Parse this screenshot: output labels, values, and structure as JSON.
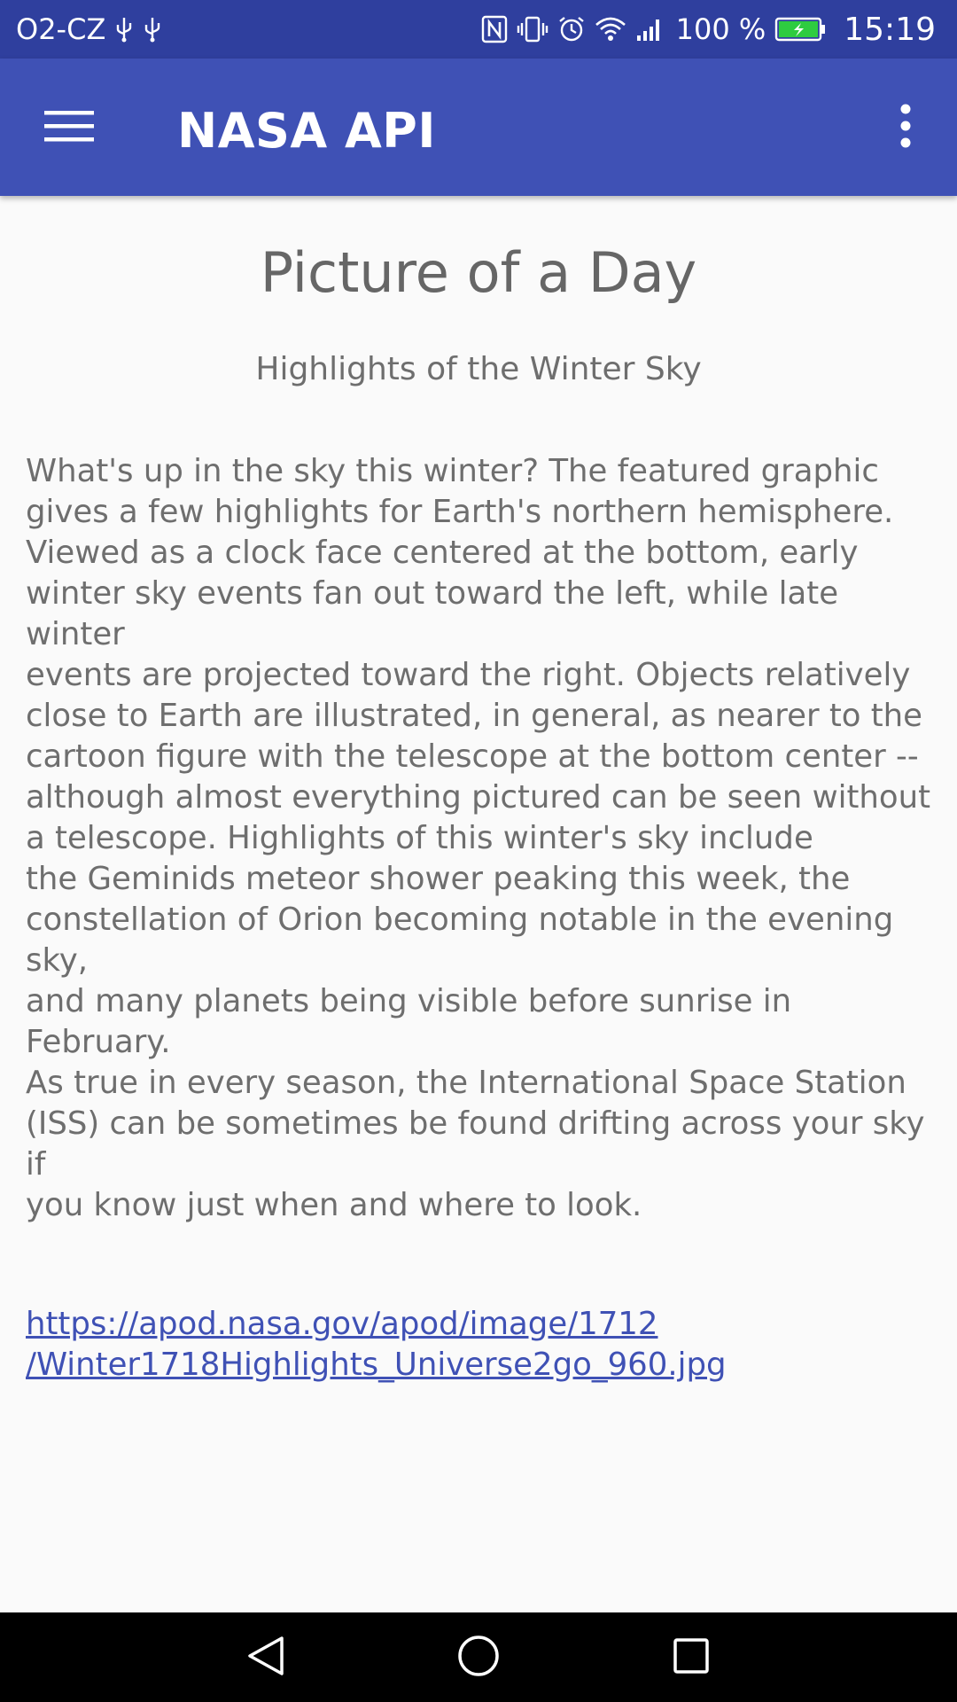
{
  "status_bar": {
    "carrier": "O2-CZ",
    "battery": "100 %",
    "time": "15:19",
    "icons": [
      "usb-icon",
      "usb-icon",
      "nfc-icon",
      "vibrate-icon",
      "alarm-icon",
      "wifi-icon",
      "signal-icon",
      "battery-charging-icon"
    ],
    "battery_color": "#2ecc40"
  },
  "app_bar": {
    "title": "NASA API",
    "color": "#3f51b5",
    "icons": [
      "menu-icon",
      "overflow-icon"
    ]
  },
  "content": {
    "heading": "Picture of a Day",
    "subtitle": "Highlights of the Winter Sky",
    "explanation": "What's up in the sky this winter?  The featured graphic\ngives a few highlights for Earth's northern hemisphere.\nViewed as a clock face centered at the bottom, early\nwinter sky events fan out toward the left, while late winter\nevents are projected toward the right.  Objects relatively\nclose to Earth are illustrated, in general, as nearer to the\ncartoon figure with the telescope at the bottom center --\nalthough almost everything pictured can be seen without\na telescope.  Highlights of this winter's sky include\nthe Geminids meteor shower peaking this week, the\nconstellation of Orion becoming notable in the evening sky,\nand many planets being visible before sunrise in February.\nAs true in every season, the International Space Station\n(ISS) can be sometimes be found drifting across your sky if\nyou know just when and where to look.",
    "image_url": "https://apod.nasa.gov/apod/image/1712\n/Winter1718Highlights_Universe2go_960.jpg",
    "link_color": "#3f51b5"
  },
  "nav_bar": {
    "icons": [
      "back-icon",
      "home-icon",
      "recents-icon"
    ]
  }
}
